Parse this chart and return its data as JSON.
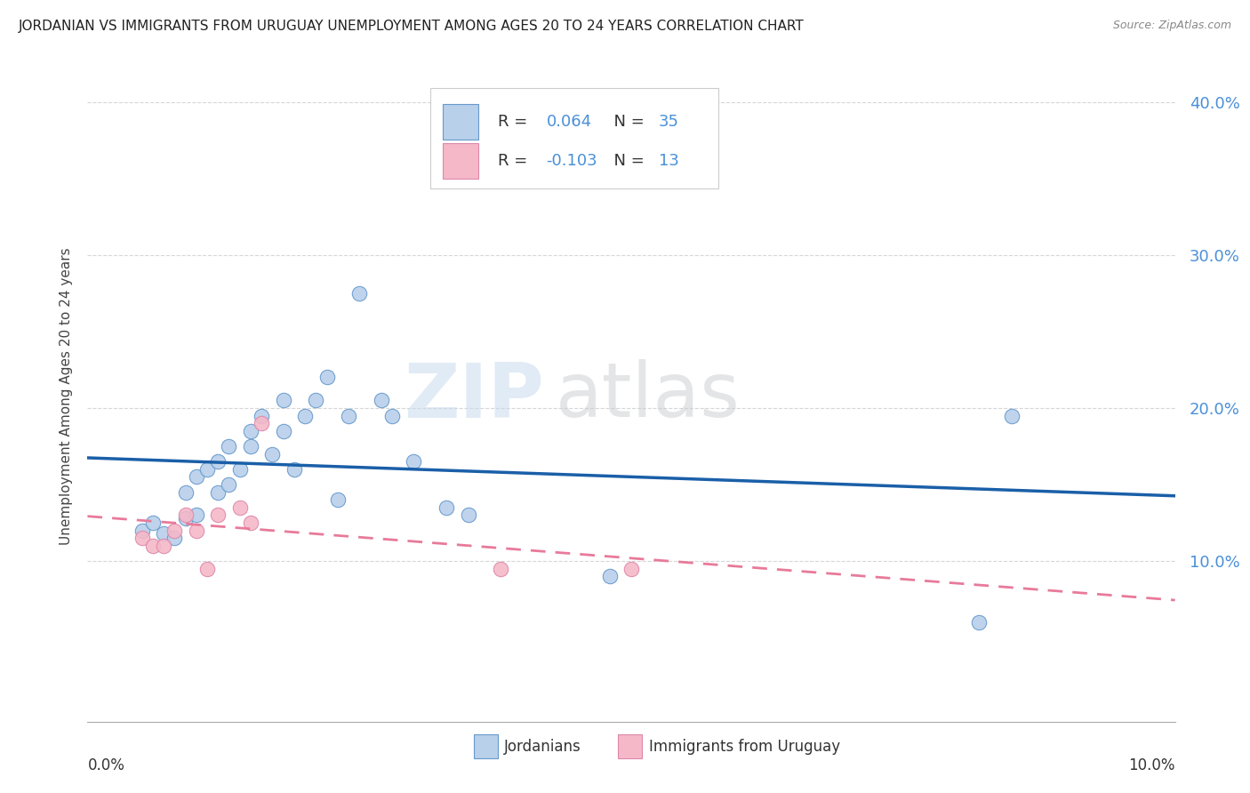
{
  "title": "JORDANIAN VS IMMIGRANTS FROM URUGUAY UNEMPLOYMENT AMONG AGES 20 TO 24 YEARS CORRELATION CHART",
  "source": "Source: ZipAtlas.com",
  "ylabel": "Unemployment Among Ages 20 to 24 years",
  "xlim": [
    0.0,
    0.1
  ],
  "ylim": [
    -0.005,
    0.42
  ],
  "yticks": [
    0.1,
    0.2,
    0.3,
    0.4
  ],
  "ytick_labels": [
    "10.0%",
    "20.0%",
    "30.0%",
    "40.0%"
  ],
  "color_jordanian_fill": "#b8d0ea",
  "color_jordanian_edge": "#6699cc",
  "color_uruguay_fill": "#f5b8c8",
  "color_uruguay_edge": "#dd88aa",
  "color_line_jordanian": "#1a5fa8",
  "color_line_uruguay": "#e87a9a",
  "watermark_zip": "ZIP",
  "watermark_atlas": "atlas",
  "jordanian_x": [
    0.005,
    0.006,
    0.007,
    0.008,
    0.009,
    0.009,
    0.01,
    0.01,
    0.011,
    0.012,
    0.012,
    0.013,
    0.013,
    0.014,
    0.015,
    0.015,
    0.016,
    0.017,
    0.018,
    0.018,
    0.019,
    0.02,
    0.021,
    0.022,
    0.023,
    0.024,
    0.025,
    0.027,
    0.028,
    0.03,
    0.033,
    0.035,
    0.048,
    0.082,
    0.085
  ],
  "jordanian_y": [
    0.12,
    0.125,
    0.118,
    0.115,
    0.128,
    0.145,
    0.13,
    0.155,
    0.16,
    0.145,
    0.165,
    0.15,
    0.175,
    0.16,
    0.175,
    0.185,
    0.195,
    0.17,
    0.185,
    0.205,
    0.16,
    0.195,
    0.205,
    0.22,
    0.14,
    0.195,
    0.275,
    0.205,
    0.195,
    0.165,
    0.135,
    0.13,
    0.09,
    0.06,
    0.195
  ],
  "uruguay_x": [
    0.005,
    0.006,
    0.007,
    0.008,
    0.009,
    0.01,
    0.011,
    0.012,
    0.014,
    0.015,
    0.016,
    0.038,
    0.05
  ],
  "uruguay_y": [
    0.115,
    0.11,
    0.11,
    0.12,
    0.13,
    0.12,
    0.095,
    0.13,
    0.135,
    0.125,
    0.19,
    0.095,
    0.095
  ],
  "background_color": "#ffffff",
  "grid_color": "#cccccc"
}
